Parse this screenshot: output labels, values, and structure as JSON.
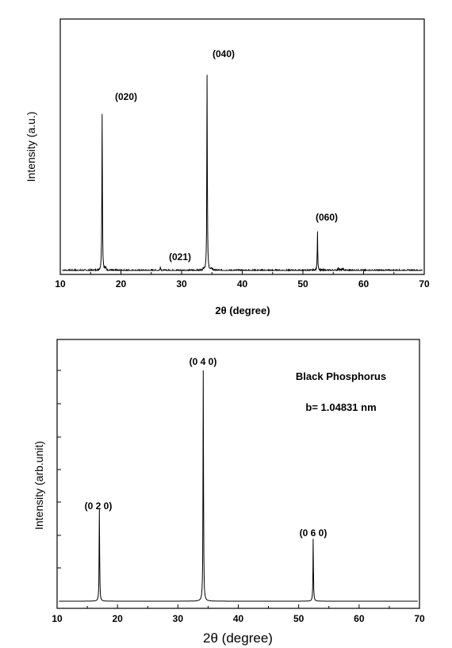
{
  "chart_data": [
    {
      "type": "line",
      "title": "",
      "xlabel": "2θ  (degree)",
      "ylabel": "Intensity (a.u.)",
      "xlim": [
        10,
        70
      ],
      "x_ticks": [
        "10",
        "20",
        "30",
        "40",
        "50",
        "60",
        "70"
      ],
      "y_ticks_labeled": false,
      "grid": false,
      "peaks": [
        {
          "label": "(020)",
          "x": 16.9,
          "intensity": 0.8
        },
        {
          "label": "(021)",
          "x": 26.5,
          "intensity": 0.02
        },
        {
          "label": "(040)",
          "x": 34.2,
          "intensity": 1.0
        },
        {
          "label": "(060)",
          "x": 52.4,
          "intensity": 0.2
        }
      ]
    },
    {
      "type": "line",
      "title": "",
      "xlabel": "2θ (degree)",
      "ylabel": "Intensity (arb.unit)",
      "xlim": [
        10,
        70
      ],
      "x_ticks": [
        "10",
        "20",
        "30",
        "40",
        "50",
        "60",
        "70"
      ],
      "y_ticks_labeled": false,
      "grid": false,
      "annotations": [
        "Black Phosphorus",
        "b= 1.04831 nm"
      ],
      "peaks": [
        {
          "label": "(0 2 0)",
          "x": 17.0,
          "intensity": 0.4
        },
        {
          "label": "(0 4 0)",
          "x": 34.2,
          "intensity": 1.0
        },
        {
          "label": "(0 6 0)",
          "x": 52.4,
          "intensity": 0.27
        }
      ]
    }
  ]
}
